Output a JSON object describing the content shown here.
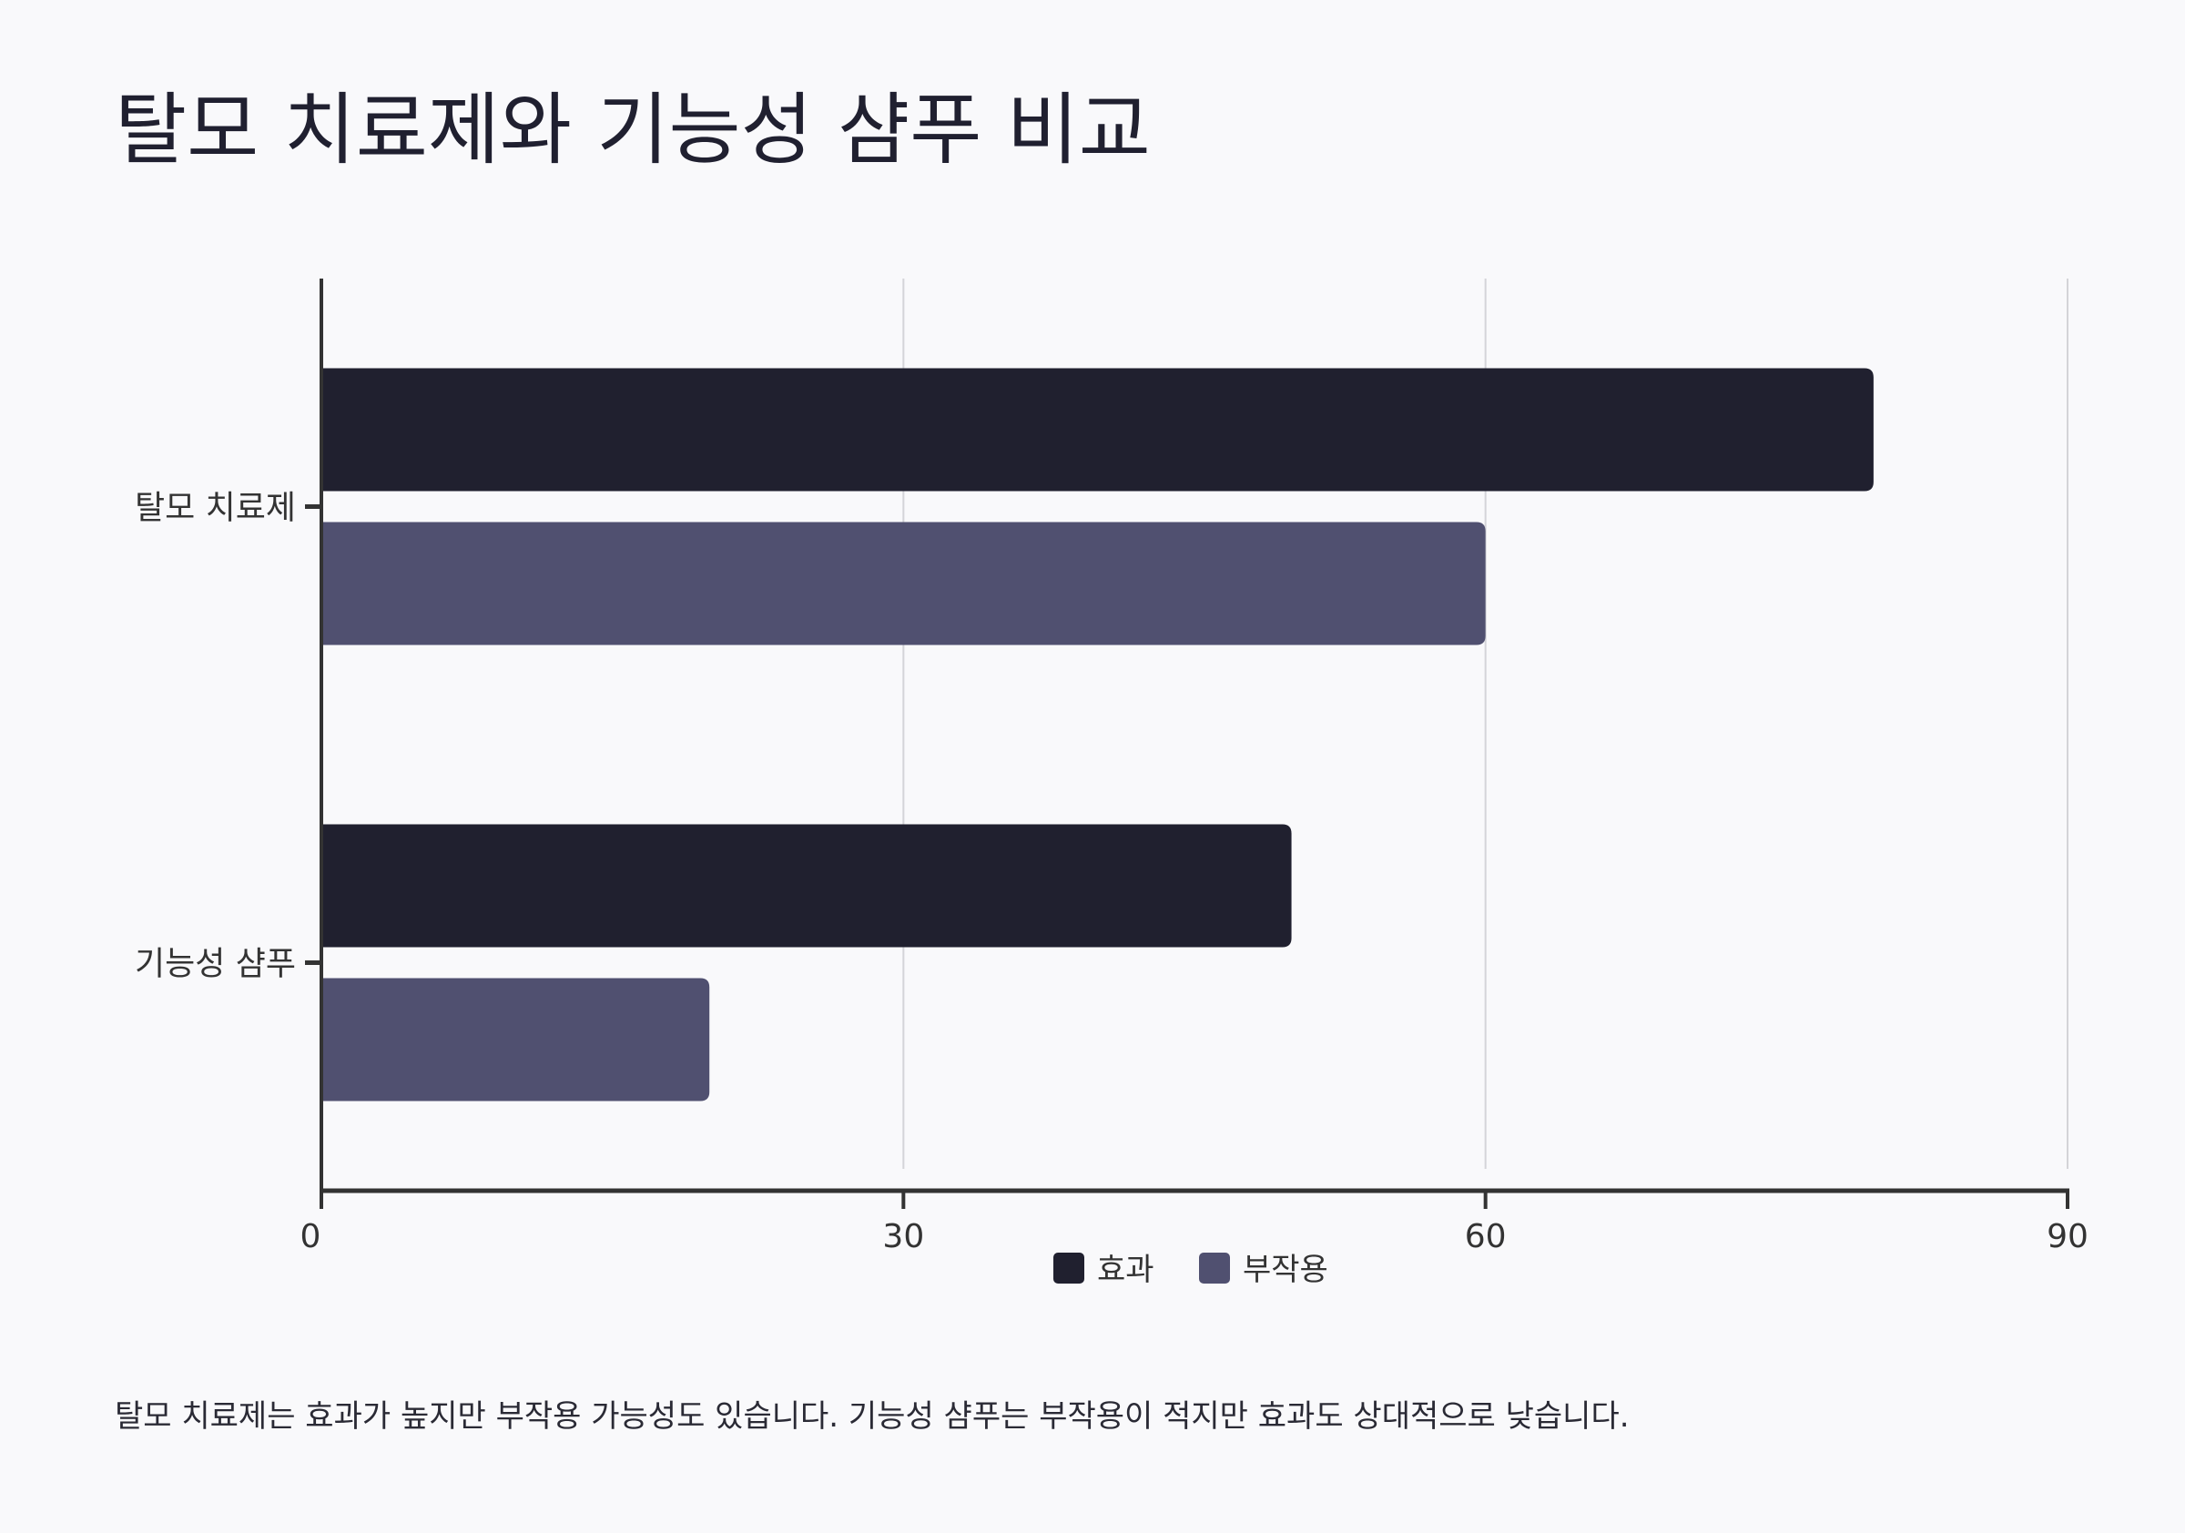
{
  "title": "탈모 치료제와 기능성 샴푸 비교",
  "caption": "탈모 치료제는 효과가 높지만 부작용 가능성도 있습니다. 기능성 샴푸는 부작용이 적지만 효과도 상대적으로 낮습니다.",
  "chart_data": {
    "type": "bar",
    "orientation": "horizontal",
    "categories": [
      "탈모 치료제",
      "기능성 샴푸"
    ],
    "series": [
      {
        "name": "효과",
        "values": [
          80,
          50
        ],
        "color": "#20202f"
      },
      {
        "name": "부작용",
        "values": [
          60,
          20
        ],
        "color": "#505070"
      }
    ],
    "xticks": [
      0,
      30,
      60,
      90
    ],
    "xlim": [
      0,
      90
    ],
    "grid": true,
    "legend": "bottom-center"
  }
}
